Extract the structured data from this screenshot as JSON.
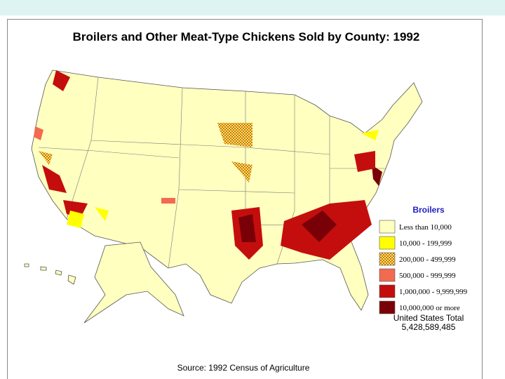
{
  "title": "Broilers and Other Meat-Type Chickens Sold by County:  1992",
  "legend": {
    "title": "Broilers",
    "items": [
      {
        "label": "Less than 10,000",
        "color": "#ffffc0"
      },
      {
        "label": "10,000 - 199,999",
        "color": "#ffff00"
      },
      {
        "label": "200,000 - 499,999",
        "color": "#e8a83a"
      },
      {
        "label": "500,000 - 999,999",
        "color": "#f26a50"
      },
      {
        "label": "1,000,000 -  9,999,999",
        "color": "#c40e0e"
      },
      {
        "label": "10,000,000 or more",
        "color": "#7a0008"
      }
    ]
  },
  "total": {
    "label": "United States Total",
    "value": "5,428,589,485"
  },
  "source": "Source:  1992 Census of Agriculture"
}
